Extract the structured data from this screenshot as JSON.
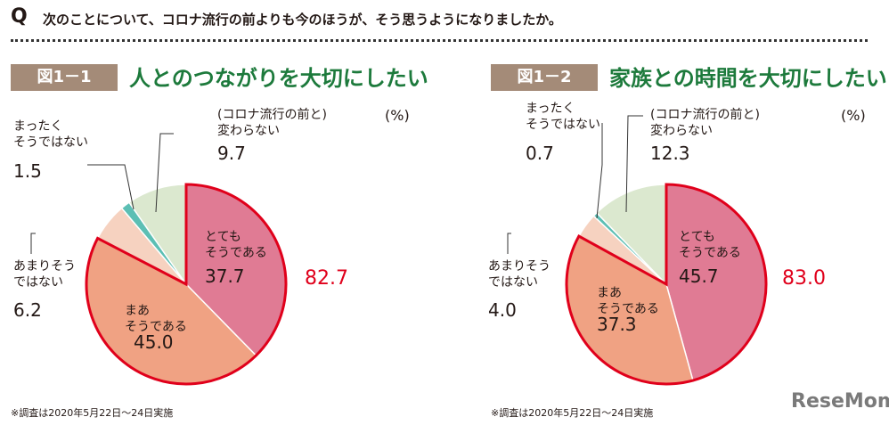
{
  "question": {
    "mark": "Q",
    "text": "次のことについて、コロナ流行の前よりも今のほうが、そう思うようになりましたか。"
  },
  "colors": {
    "totally": "#e07b94",
    "somewhat": "#f0a283",
    "not_really": "#f6d2c0",
    "not_at_all": "#5cbfb4",
    "no_change": "#dbe8cf",
    "outline": "#e0001b"
  },
  "chart_data": [
    {
      "type": "pie",
      "figure": "図1－1",
      "title": "人とのつながりを大切にしたい",
      "unit": "(%)",
      "total_label": "82.7",
      "slices": [
        {
          "label": "とても\nそうである",
          "value": 37.7
        },
        {
          "label": "まあ\nそうである",
          "value": 45.0
        },
        {
          "label": "あまりそう\nではない",
          "value": 6.2
        },
        {
          "label": "まったく\nそうではない",
          "value": 1.5
        },
        {
          "label": "(コロナ流行の前と)\n変わらない",
          "value": 9.7
        }
      ],
      "note": "※調査は2020年5月22日～24日実施"
    },
    {
      "type": "pie",
      "figure": "図1－2",
      "title": "家族との時間を大切にしたい",
      "unit": "(%)",
      "total_label": "83.0",
      "slices": [
        {
          "label": "とても\nそうである",
          "value": 45.7
        },
        {
          "label": "まあ\nそうである",
          "value": 37.3
        },
        {
          "label": "あまりそう\nではない",
          "value": 4.0
        },
        {
          "label": "まったく\nそうではない",
          "value": 0.7
        },
        {
          "label": "(コロナ流行の前と)\n変わらない",
          "value": 12.3
        }
      ],
      "note": "※調査は2020年5月22日～24日実施"
    }
  ],
  "logo": "ReseMom"
}
